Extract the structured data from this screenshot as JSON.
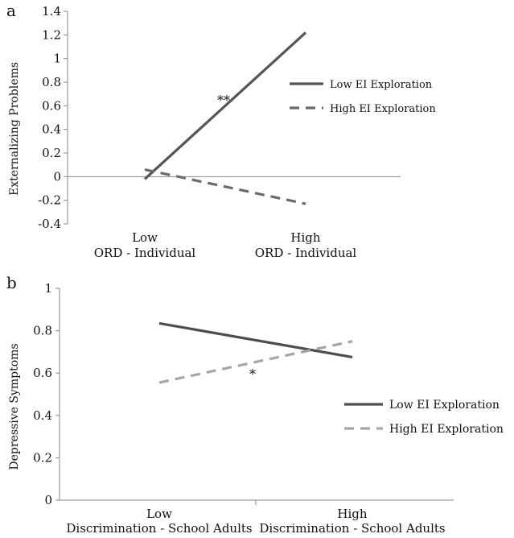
{
  "chart_data": [
    {
      "panel_label": "a",
      "type": "line",
      "ylabel": "Externalizing Problems",
      "ylim": [
        -0.4,
        1.4
      ],
      "yticks": [
        -0.4,
        -0.2,
        0,
        0.2,
        0.4,
        0.6,
        0.8,
        1,
        1.2,
        1.4
      ],
      "ytick_labels": [
        "-0.4",
        "-0.2",
        "0",
        "0.2",
        "0.4",
        "0.6",
        "0.8",
        "1",
        "1.2",
        "1.4"
      ],
      "categories": [
        "Low",
        "High"
      ],
      "category_labels": [
        [
          "Low",
          "ORD - Individual"
        ],
        [
          "High",
          "ORD - Individual"
        ]
      ],
      "series": [
        {
          "name": "Low EI Exploration",
          "values": [
            -0.02,
            1.22
          ],
          "color": "#555555",
          "dashed": false
        },
        {
          "name": "High EI Exploration",
          "values": [
            0.06,
            -0.23
          ],
          "color": "#6b6b6b",
          "dashed": true
        }
      ],
      "annotation": "**",
      "legend": "right"
    },
    {
      "panel_label": "b",
      "type": "line",
      "ylabel": "Depressive Symptoms",
      "ylim": [
        0,
        1
      ],
      "yticks": [
        0,
        0.2,
        0.4,
        0.6,
        0.8,
        1
      ],
      "ytick_labels": [
        "0",
        "0.2",
        "0.4",
        "0.6",
        "0.8",
        "1"
      ],
      "categories": [
        "Low",
        "High"
      ],
      "category_labels": [
        [
          "Low",
          "Discrimination - School Adults"
        ],
        [
          "High",
          "Discrimination - School Adults"
        ]
      ],
      "series": [
        {
          "name": "Low EI Exploration",
          "values": [
            0.835,
            0.675
          ],
          "color": "#4d4d4d",
          "dashed": false
        },
        {
          "name": "High EI Exploration",
          "values": [
            0.555,
            0.75
          ],
          "color": "#a6a6a6",
          "dashed": true
        }
      ],
      "annotation": "*",
      "legend": "right"
    }
  ]
}
